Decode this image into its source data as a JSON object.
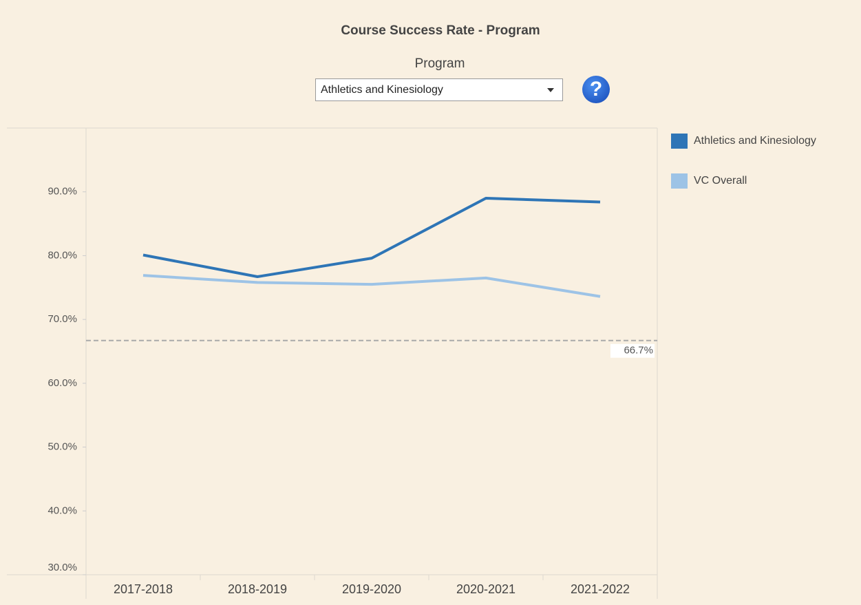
{
  "chart_data": {
    "type": "line",
    "title": "Course Success Rate - Program",
    "filter_label": "Program",
    "filter_value": "Athletics and Kinesiology",
    "help_icon": "?",
    "categories": [
      "2017-2018",
      "2018-2019",
      "2019-2020",
      "2020-2021",
      "2021-2022"
    ],
    "series": [
      {
        "name": "Athletics and Kinesiology",
        "color": "#2e75b6",
        "values": [
          80.1,
          76.7,
          79.6,
          89.0,
          88.4
        ]
      },
      {
        "name": "VC Overall",
        "color": "#9dc3e6",
        "values": [
          76.9,
          75.8,
          75.5,
          76.5,
          73.6
        ]
      }
    ],
    "ylim": [
      30,
      100
    ],
    "yticks": [
      {
        "value": 30,
        "label": "30.0%"
      },
      {
        "value": 40,
        "label": "40.0%"
      },
      {
        "value": 50,
        "label": "50.0%"
      },
      {
        "value": 60,
        "label": "60.0%"
      },
      {
        "value": 70,
        "label": "70.0%"
      },
      {
        "value": 80,
        "label": "80.0%"
      },
      {
        "value": 90,
        "label": "90.0%"
      }
    ],
    "reference_line": {
      "value": 66.7,
      "label": "66.7%",
      "color": "#a9a9a9"
    },
    "legend": "right"
  }
}
